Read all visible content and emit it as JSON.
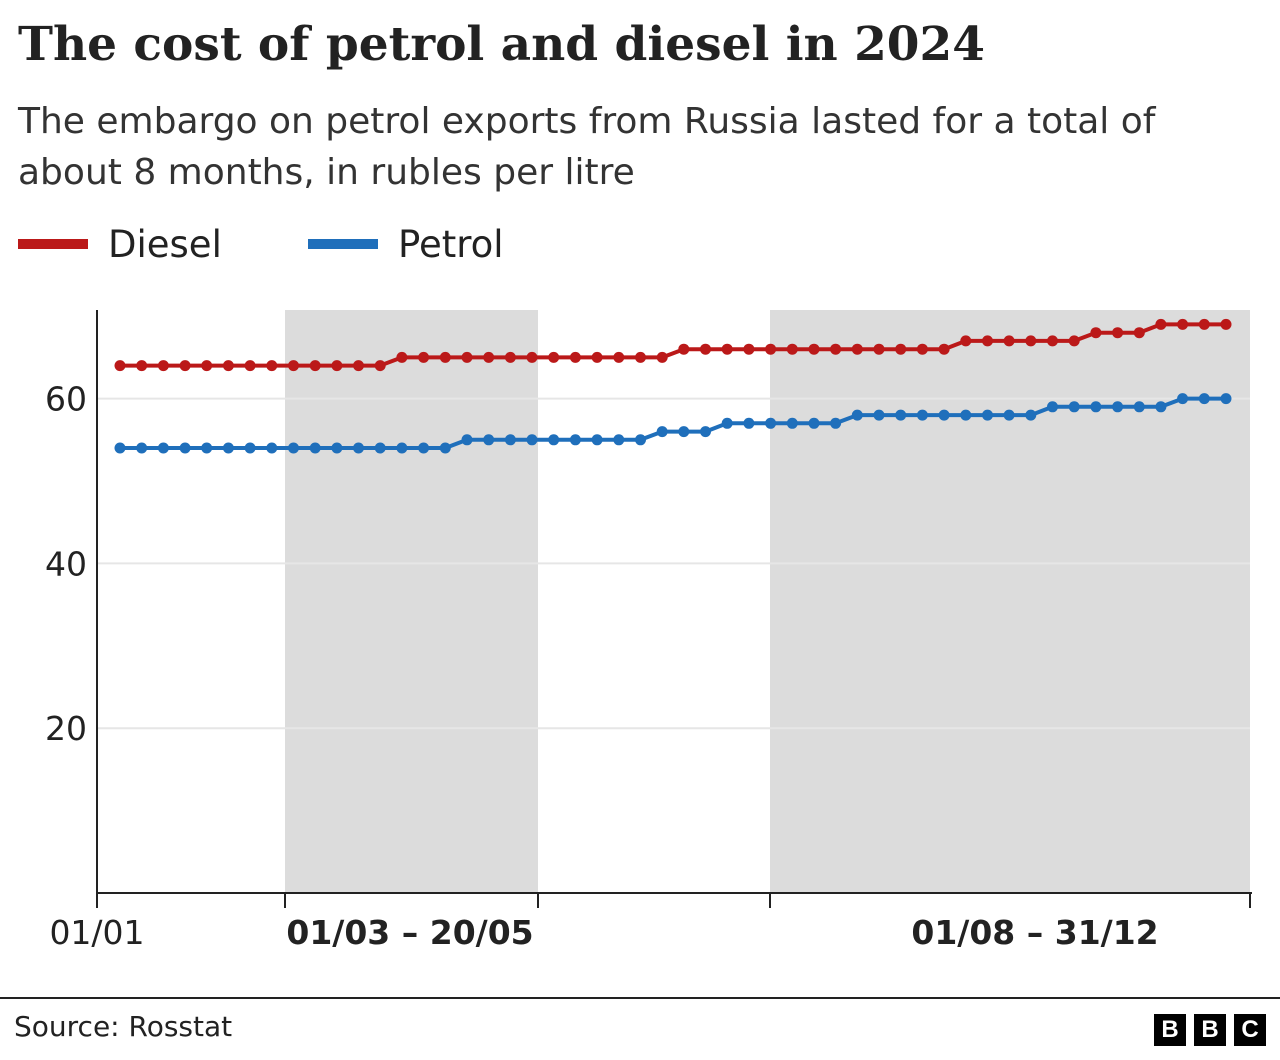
{
  "chart_data": {
    "type": "line",
    "title": "The cost of petrol and diesel in 2024",
    "subtitle": "The embargo on petrol exports from Russia lasted for a total of about 8 months, in rubles per litre",
    "xlabel": "",
    "ylabel": "",
    "ylim": [
      0,
      71
    ],
    "yticks": [
      20,
      40,
      60
    ],
    "grid": true,
    "legend_position": "top-left",
    "x_start_label": "01/01",
    "shaded_periods": [
      {
        "label": "01/03 – 20/05"
      },
      {
        "label": "01/08 – 31/12"
      }
    ],
    "series": [
      {
        "name": "Diesel",
        "color": "#bb1919",
        "values": [
          64,
          64,
          64,
          64,
          64,
          64,
          64,
          64,
          64,
          64,
          64,
          64,
          64,
          65,
          65,
          65,
          65,
          65,
          65,
          65,
          65,
          65,
          65,
          65,
          65,
          65,
          66,
          66,
          66,
          66,
          66,
          66,
          66,
          66,
          66,
          66,
          66,
          66,
          66,
          67,
          67,
          67,
          67,
          67,
          67,
          68,
          68,
          68,
          69,
          69,
          69,
          69
        ]
      },
      {
        "name": "Petrol",
        "color": "#1f6fbb",
        "values": [
          54,
          54,
          54,
          54,
          54,
          54,
          54,
          54,
          54,
          54,
          54,
          54,
          54,
          54,
          54,
          54,
          55,
          55,
          55,
          55,
          55,
          55,
          55,
          55,
          55,
          56,
          56,
          56,
          57,
          57,
          57,
          57,
          57,
          57,
          58,
          58,
          58,
          58,
          58,
          58,
          58,
          58,
          58,
          59,
          59,
          59,
          59,
          59,
          59,
          60,
          60,
          60
        ]
      }
    ]
  },
  "source": "Source: Rosstat",
  "logo": [
    "B",
    "B",
    "C"
  ],
  "colors": {
    "diesel": "#bb1919",
    "petrol": "#1f6fbb",
    "shading": "#dcdcdc",
    "gridline": "#e6e6e6",
    "axis": "#222222"
  }
}
